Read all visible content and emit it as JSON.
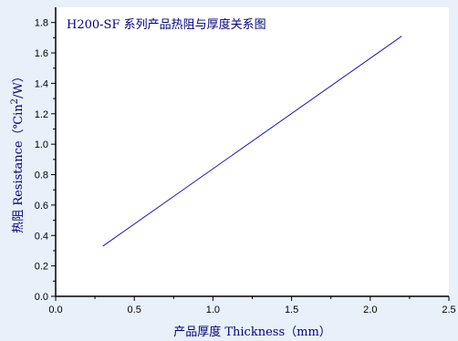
{
  "chart_data": {
    "type": "line",
    "title": "H200-SF 系列产品热阻与厚度关系图",
    "xlabel": "产品厚度 Thickness（mm）",
    "ylabel_main": "热阻 Resistance（℃in",
    "ylabel_sup": "2",
    "ylabel_tail": "/W）",
    "xlim": [
      0.0,
      2.5
    ],
    "ylim": [
      0.0,
      1.9
    ],
    "x_ticks": [
      {
        "value": 0.0,
        "label": "0.0"
      },
      {
        "value": 0.5,
        "label": "0.5"
      },
      {
        "value": 1.0,
        "label": "1.0"
      },
      {
        "value": 1.5,
        "label": "1.5"
      },
      {
        "value": 2.0,
        "label": "2.0"
      },
      {
        "value": 2.5,
        "label": "2.5"
      }
    ],
    "y_ticks": [
      {
        "value": 0.0,
        "label": "0.0"
      },
      {
        "value": 0.2,
        "label": "0.2"
      },
      {
        "value": 0.4,
        "label": "0.4"
      },
      {
        "value": 0.6,
        "label": "0.6"
      },
      {
        "value": 0.8,
        "label": "0.8"
      },
      {
        "value": 1.0,
        "label": "1.0"
      },
      {
        "value": 1.2,
        "label": "1.2"
      },
      {
        "value": 1.4,
        "label": "1.4"
      },
      {
        "value": 1.6,
        "label": "1.6"
      },
      {
        "value": 1.8,
        "label": "1.8"
      }
    ],
    "series": [
      {
        "x": [
          0.3,
          2.2
        ],
        "y": [
          0.33,
          1.71
        ]
      }
    ],
    "grid": false,
    "colors": {
      "background": "#e8f0f9",
      "plot_area": "#ffffff",
      "line": "#1818b8",
      "axis": "#000000",
      "label": "#000080"
    }
  }
}
